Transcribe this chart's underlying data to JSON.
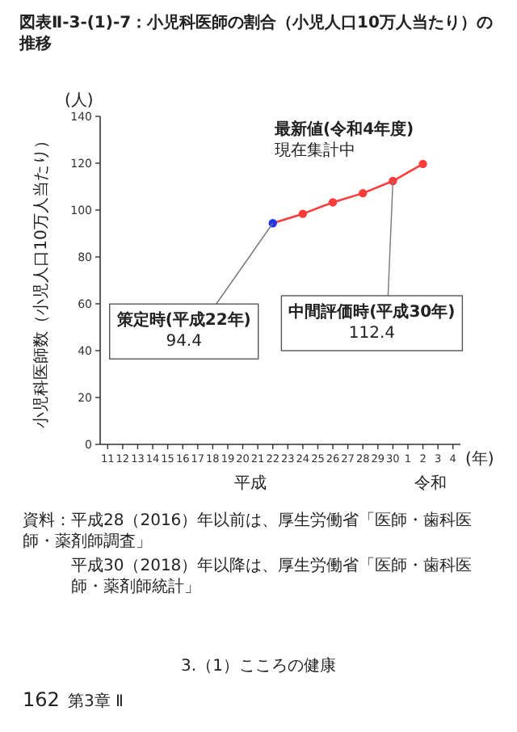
{
  "chart_data": {
    "type": "line",
    "title": "図表Ⅱ-3-(1)-7：小児科医師の割合（小児人口10万人当たり）の推移",
    "ylabel": "小児科医師数（小児人口10万人当たり）",
    "xlabel": "(年)",
    "categories": [
      "11",
      "12",
      "13",
      "14",
      "15",
      "16",
      "17",
      "18",
      "19",
      "20",
      "21",
      "22",
      "23",
      "24",
      "25",
      "26",
      "27",
      "28",
      "29",
      "30",
      "1",
      "2",
      "3",
      "4"
    ],
    "series": [
      {
        "color": "#ff3b3b",
        "colors": [
          null,
          null,
          null,
          null,
          null,
          null,
          null,
          null,
          null,
          null,
          null,
          "#2233ee",
          null,
          "#ff3b3b",
          null,
          "#ff3b3b",
          null,
          "#ff3b3b",
          null,
          "#ff3b3b",
          null,
          "#ff3b3b",
          null,
          null
        ],
        "values": [
          null,
          null,
          null,
          null,
          null,
          null,
          null,
          null,
          null,
          null,
          null,
          94.4,
          null,
          98.4,
          null,
          103.3,
          null,
          107.2,
          null,
          112.4,
          null,
          119.7,
          null,
          null
        ]
      }
    ],
    "ylim": [
      0,
      140
    ],
    "yticks": [
      0,
      20,
      40,
      60,
      80,
      100,
      120,
      140
    ],
    "marker": "circle",
    "grid": false,
    "annotations": [
      {
        "text": "策定時(平成22年)",
        "x": "22",
        "y": 94.4
      },
      "94.4",
      {
        "text": "中間評価時(平成30年)",
        "x": "30",
        "y": 112.4
      },
      "112.4",
      "(人)",
      "最新値(令和4年度)",
      "現在集計中",
      "平成",
      "令和",
      "資料：平成28（2016）年以前は、厚生労働省「医師・歯科医師・薬剤師調査」",
      "平成30（2018）年以降は、厚生労働省「医師・歯科医師・薬剤師統計」",
      "3.（1）こころの健康",
      "162",
      "第3章 Ⅱ"
    ]
  }
}
